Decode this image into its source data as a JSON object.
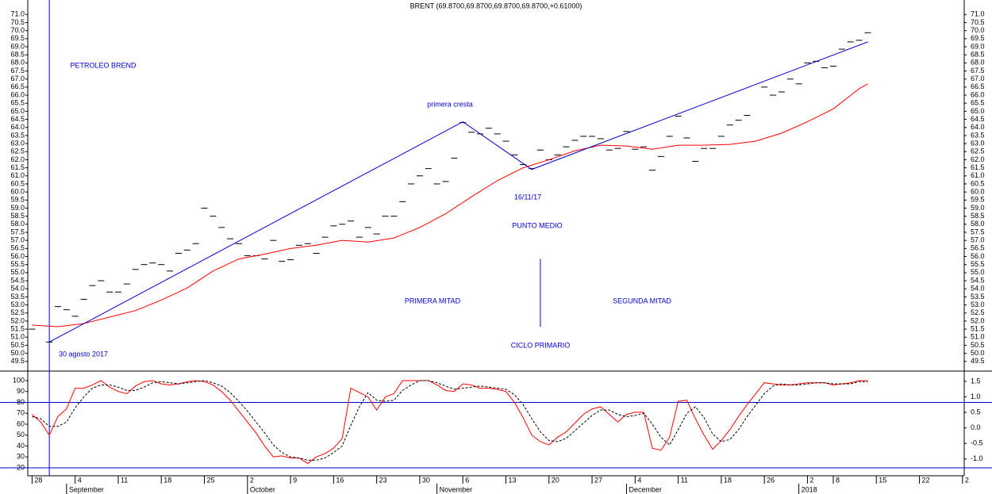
{
  "chart_data": [
    {
      "type": "line",
      "title": "BRENT (69.8700,69.8700,69.8700,69.8700,+0.61000)",
      "annotations": [
        "PETROLEO BREND",
        "primera cresta",
        "16/11/17",
        "PUNTO MEDIO",
        "PRIMERA MITAD",
        "SEGUNDA MITAD",
        "CICLO PRIMARIO",
        "30 agosto 2017"
      ],
      "xlim": [
        -0.5,
        108.2
      ],
      "ylim": [
        48.9,
        71.8
      ],
      "yticks": [
        {
          "value": 71,
          "label": "71.0"
        },
        70.5,
        {
          "value": 70,
          "label": "70.0"
        },
        69.5,
        {
          "value": 69,
          "label": "69.0"
        },
        68.5,
        {
          "value": 68,
          "label": "68.0"
        },
        67.5,
        {
          "value": 67,
          "label": "67.0"
        },
        66.5,
        {
          "value": 66,
          "label": "66.0"
        },
        65.5,
        {
          "value": 65,
          "label": "65.0"
        },
        64.5,
        {
          "value": 64,
          "label": "64.0"
        },
        63.5,
        {
          "value": 63,
          "label": "63.0"
        },
        62.5,
        {
          "value": 62,
          "label": "62.0"
        },
        61.5,
        {
          "value": 61,
          "label": "61.0"
        },
        60.5,
        {
          "value": 60,
          "label": "60.0"
        },
        59.5,
        {
          "value": 59,
          "label": "59.0"
        },
        58.5,
        {
          "value": 58,
          "label": "58.0"
        },
        57.5,
        {
          "value": 57,
          "label": "57.0"
        },
        56.5,
        {
          "value": 56,
          "label": "56.0"
        },
        55.5,
        {
          "value": 55,
          "label": "55.0"
        },
        54.5,
        {
          "value": 54,
          "label": "54.0"
        },
        53.5,
        {
          "value": 53,
          "label": "53.0"
        },
        52.5,
        {
          "value": 52,
          "label": "52.0"
        },
        51.5,
        {
          "value": 51,
          "label": "51.0"
        },
        50.5,
        {
          "value": 50,
          "label": "50.0"
        },
        49.5
      ],
      "vlines": [
        2
      ],
      "vline_color": "#0000cc",
      "series": [
        {
          "color": "#000000",
          "marker": "dash",
          "x": [
            0,
            2,
            3,
            4,
            5,
            6,
            7,
            8,
            9,
            10,
            11,
            12,
            13,
            14,
            15,
            16,
            17,
            18,
            19,
            20,
            21,
            22,
            23,
            24,
            25,
            26,
            27,
            28,
            29,
            30,
            31,
            32,
            33,
            34,
            35,
            36,
            37,
            38,
            39,
            40,
            41,
            42,
            43,
            44,
            45,
            46,
            47,
            48,
            49,
            50,
            51,
            52,
            53,
            54,
            55,
            56,
            57,
            58,
            59,
            60,
            61,
            62,
            63,
            64,
            65,
            66,
            67,
            68,
            69,
            70,
            71,
            72,
            73,
            74,
            75,
            76,
            77,
            78,
            79,
            80,
            81,
            82,
            83,
            85,
            86,
            87,
            88,
            89,
            90,
            91,
            92,
            93,
            94,
            95,
            96,
            97
          ],
          "values": [
            51.5,
            50.7,
            52.9,
            52.7,
            52.3,
            53.35,
            54.2,
            54.5,
            53.8,
            53.8,
            54.3,
            55.2,
            55.5,
            55.6,
            55.5,
            55.1,
            56.2,
            56.4,
            56.8,
            59.0,
            58.5,
            57.8,
            57.1,
            56.8,
            56.05,
            56.05,
            55.85,
            57.0,
            55.7,
            55.8,
            56.7,
            56.8,
            56.2,
            57.2,
            57.9,
            58.0,
            58.2,
            57.2,
            57.8,
            57.4,
            58.5,
            58.5,
            59.4,
            60.5,
            61.0,
            61.45,
            60.5,
            60.65,
            62.1,
            64.3,
            63.7,
            63.6,
            63.95,
            63.6,
            63.15,
            62.3,
            61.7,
            61.45,
            62.6,
            62.0,
            62.3,
            62.8,
            63.2,
            63.45,
            63.45,
            63.3,
            62.6,
            62.7,
            63.75,
            62.65,
            62.8,
            61.35,
            62.2,
            63.45,
            64.7,
            63.35,
            61.9,
            62.7,
            62.7,
            63.45,
            64.15,
            64.45,
            64.75,
            66.5,
            66.0,
            66.2,
            67.0,
            66.7,
            68.0,
            68.1,
            67.7,
            67.8,
            68.85,
            69.3,
            69.4,
            69.87
          ]
        },
        {
          "color": "#ff0000",
          "x": [
            0,
            3,
            6,
            9,
            12,
            15,
            18,
            21,
            24,
            27,
            30,
            33,
            36,
            39,
            42,
            45,
            48,
            51,
            54,
            57,
            60,
            63,
            66,
            69,
            72,
            75,
            78,
            81,
            84,
            87,
            90,
            93,
            96,
            97
          ],
          "values": [
            51.75,
            51.65,
            51.85,
            52.25,
            52.65,
            53.3,
            54.05,
            55.1,
            55.85,
            56.15,
            56.5,
            56.7,
            57.0,
            56.9,
            57.15,
            57.8,
            58.65,
            59.7,
            60.7,
            61.5,
            62.0,
            62.55,
            62.9,
            62.85,
            62.65,
            62.9,
            62.9,
            62.95,
            63.15,
            63.65,
            64.35,
            65.15,
            66.4,
            66.7
          ]
        },
        {
          "color": "#0000cc",
          "x": [
            2,
            50,
            58,
            97
          ],
          "values": [
            50.7,
            64.35,
            61.4,
            69.3
          ]
        },
        {
          "color": "#0000cc",
          "x": [
            59,
            59
          ],
          "values": [
            55.85,
            51.65
          ]
        }
      ]
    },
    {
      "type": "line",
      "xlim": [
        -0.5,
        108.2
      ],
      "ylim": [
        12.7,
        108.7
      ],
      "yticks": [
        100,
        90,
        80,
        70,
        60,
        50,
        40,
        30,
        20
      ],
      "y2lim": [
        -1.54,
        1.83
      ],
      "y2ticks": [
        1.5,
        {
          "value": 1,
          "label": "1.0"
        },
        0.5,
        {
          "value": 0,
          "label": "0.0"
        },
        -0.5,
        {
          "value": -1,
          "label": "-1.0"
        }
      ],
      "hlines": [
        80,
        20
      ],
      "hline_color": "#0000cc",
      "xticks": [
        {
          "value": 0,
          "label": "28"
        },
        {
          "value": 5,
          "label": "4"
        },
        {
          "value": 10,
          "label": "11"
        },
        {
          "value": 15,
          "label": "18"
        },
        {
          "value": 20,
          "label": "25"
        },
        {
          "value": 25,
          "label": "2"
        },
        {
          "value": 30,
          "label": "9"
        },
        {
          "value": 35,
          "label": "16"
        },
        {
          "value": 40,
          "label": "23"
        },
        {
          "value": 45,
          "label": "30"
        },
        {
          "value": 50,
          "label": "6"
        },
        {
          "value": 55,
          "label": "13"
        },
        {
          "value": 60,
          "label": "20"
        },
        {
          "value": 65,
          "label": "27"
        },
        {
          "value": 70,
          "label": "4"
        },
        {
          "value": 75,
          "label": "11"
        },
        {
          "value": 80,
          "label": "18"
        },
        {
          "value": 85,
          "label": "26"
        },
        {
          "value": 90,
          "label": "2"
        },
        {
          "value": 93,
          "label": "8"
        },
        {
          "value": 98,
          "label": "15"
        },
        {
          "value": 103,
          "label": "22"
        },
        {
          "value": 108,
          "label": "2"
        }
      ],
      "month_ticks": [
        {
          "value": 4,
          "label": "September"
        },
        {
          "value": 25,
          "label": "October"
        },
        {
          "value": 47,
          "label": "November"
        },
        {
          "value": 69,
          "label": "December"
        },
        {
          "value": 89,
          "label": "2018"
        }
      ],
      "series": [
        {
          "color": "#ff0000",
          "x": [
            0,
            1,
            2,
            3,
            4,
            5,
            6,
            7,
            8,
            9,
            10,
            11,
            12,
            13,
            14,
            15,
            16,
            17,
            18,
            19,
            20,
            21,
            22,
            23,
            24,
            25,
            26,
            27,
            28,
            29,
            30,
            31,
            32,
            33,
            34,
            35,
            36,
            37,
            38,
            39,
            40,
            41,
            42,
            43,
            44,
            45,
            46,
            47,
            48,
            49,
            50,
            51,
            52,
            53,
            54,
            55,
            56,
            57,
            58,
            59,
            60,
            61,
            62,
            63,
            64,
            65,
            66,
            67,
            68,
            69,
            70,
            71,
            72,
            73,
            74,
            75,
            76,
            77,
            78,
            79,
            80,
            81,
            82,
            83,
            85,
            86,
            87,
            88,
            89,
            90,
            91,
            92,
            93,
            94,
            95,
            96,
            97
          ],
          "values": [
            69,
            62,
            50,
            67,
            74,
            93,
            93,
            96,
            100,
            94,
            90,
            88,
            95,
            99,
            100,
            97,
            96,
            97,
            99,
            100,
            99,
            96,
            90,
            82,
            72,
            62,
            52,
            40,
            30,
            31,
            29,
            29,
            24,
            30,
            33,
            38,
            47,
            93,
            89,
            85,
            73,
            85,
            88,
            100,
            100,
            100,
            100,
            96,
            91,
            90,
            97,
            96,
            93,
            93,
            92,
            90,
            80,
            66,
            50,
            44,
            41,
            48,
            53,
            61,
            69,
            74,
            76,
            69,
            62,
            69,
            71,
            71,
            38,
            36,
            48,
            81,
            82,
            65,
            50,
            37,
            45,
            55,
            67,
            78,
            98,
            97,
            96,
            96,
            97,
            98,
            98,
            98,
            96,
            97,
            98,
            100,
            100
          ]
        },
        {
          "color": "#000000",
          "dash": true,
          "x": [
            0,
            1,
            2,
            3,
            4,
            5,
            6,
            7,
            8,
            9,
            10,
            11,
            12,
            13,
            14,
            15,
            16,
            17,
            18,
            19,
            20,
            21,
            22,
            23,
            24,
            25,
            26,
            27,
            28,
            29,
            30,
            31,
            32,
            33,
            34,
            35,
            36,
            37,
            38,
            39,
            40,
            41,
            42,
            43,
            44,
            45,
            46,
            47,
            48,
            49,
            50,
            51,
            52,
            53,
            54,
            55,
            56,
            57,
            58,
            59,
            60,
            61,
            62,
            63,
            64,
            65,
            66,
            67,
            68,
            69,
            70,
            71,
            72,
            73,
            74,
            75,
            76,
            77,
            78,
            79,
            80,
            81,
            82,
            83,
            85,
            86,
            87,
            88,
            89,
            90,
            91,
            92,
            93,
            94,
            95,
            96,
            97
          ],
          "values": [
            67,
            65,
            58,
            58,
            62,
            75,
            85,
            93,
            96,
            96,
            94,
            91,
            91,
            94,
            98,
            99,
            98,
            97,
            98,
            99,
            100,
            98,
            95,
            89,
            81,
            72,
            62,
            52,
            41,
            34,
            30,
            29,
            27,
            27,
            29,
            34,
            40,
            59,
            76,
            89,
            82,
            81,
            82,
            91,
            96,
            100,
            100,
            98,
            95,
            92,
            93,
            94,
            95,
            94,
            93,
            92,
            87,
            78,
            65,
            53,
            45,
            44,
            47,
            54,
            61,
            68,
            73,
            73,
            69,
            67,
            68,
            70,
            60,
            48,
            41,
            55,
            70,
            76,
            66,
            51,
            44,
            46,
            55,
            67,
            88,
            95,
            97,
            96,
            96,
            97,
            98,
            98,
            97,
            97,
            97,
            99,
            99
          ]
        }
      ]
    }
  ]
}
